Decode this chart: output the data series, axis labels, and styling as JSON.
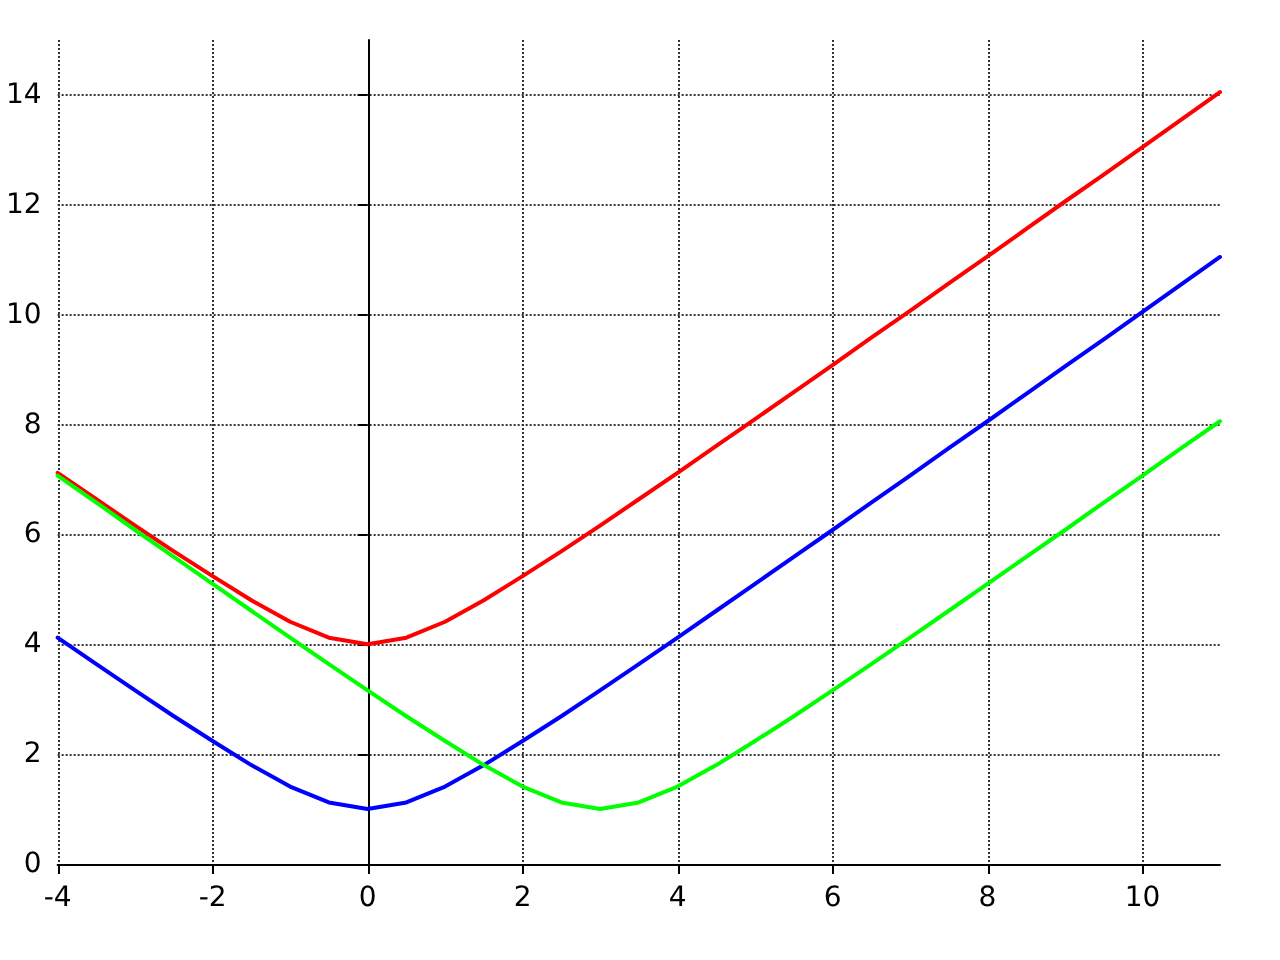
{
  "chart_data": {
    "type": "line",
    "x": [
      -4,
      -3.5,
      -3,
      -2.5,
      -2,
      -1.5,
      -1,
      -0.5,
      0,
      0.5,
      1,
      1.5,
      2,
      2.5,
      3,
      3.5,
      4,
      4.5,
      5,
      5.5,
      6,
      6.5,
      7,
      7.5,
      8,
      8.5,
      9,
      9.5,
      10,
      10.5,
      11
    ],
    "series": [
      {
        "color": "#ff0000",
        "values": [
          7.12,
          6.64,
          6.16,
          5.69,
          5.24,
          4.8,
          4.41,
          4.12,
          4,
          4.12,
          4.41,
          4.8,
          5.24,
          5.69,
          6.16,
          6.64,
          7.12,
          7.61,
          8.1,
          8.59,
          9.08,
          9.58,
          10.07,
          10.57,
          11.06,
          11.56,
          12.06,
          12.55,
          13.05,
          13.55,
          14.05
        ]
      },
      {
        "color": "#0000ff",
        "values": [
          4.12,
          3.64,
          3.16,
          2.69,
          2.24,
          1.8,
          1.41,
          1.12,
          1,
          1.12,
          1.41,
          1.8,
          2.24,
          2.69,
          3.16,
          3.64,
          4.12,
          4.61,
          5.1,
          5.59,
          6.08,
          6.58,
          7.07,
          7.57,
          8.06,
          8.56,
          9.06,
          9.55,
          10.05,
          10.55,
          11.05
        ]
      },
      {
        "color": "#00ff00",
        "values": [
          7.07,
          6.58,
          6.08,
          5.59,
          5.1,
          4.61,
          4.12,
          3.64,
          3.16,
          2.69,
          2.24,
          1.8,
          1.41,
          1.12,
          1,
          1.12,
          1.41,
          1.8,
          2.24,
          2.69,
          3.16,
          3.64,
          4.12,
          4.61,
          5.1,
          5.59,
          6.08,
          6.58,
          7.07,
          7.57,
          8.06
        ]
      }
    ],
    "xlim": [
      -4,
      11
    ],
    "xticks": [
      -4,
      -2,
      0,
      2,
      4,
      6,
      8,
      10
    ],
    "ylim": [
      0,
      15
    ],
    "yticks": [
      0,
      2,
      4,
      6,
      8,
      10,
      12,
      14
    ],
    "grid": true,
    "marker": "none",
    "line_style": "solid"
  }
}
